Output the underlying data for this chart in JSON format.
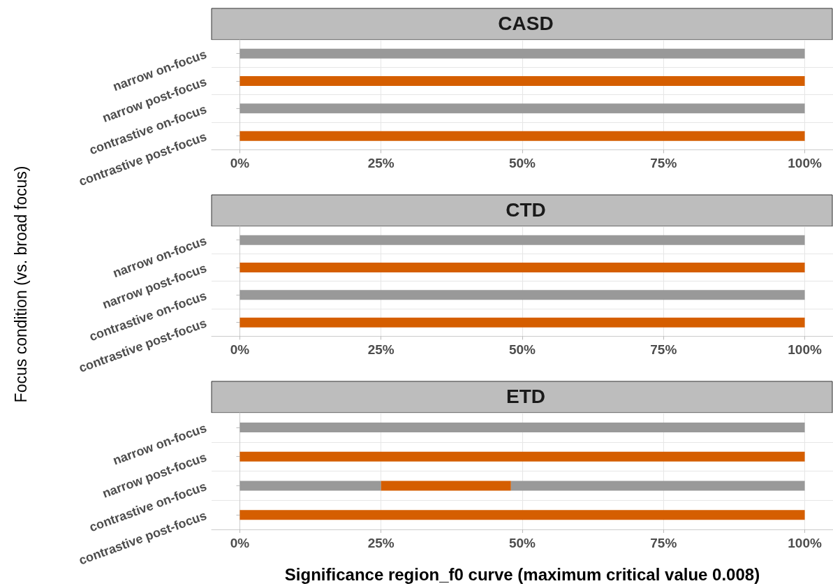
{
  "chart_data": [
    {
      "type": "bar",
      "title": "CASD",
      "orientation": "horizontal",
      "stacked": true,
      "categories": [
        "narrow on-focus",
        "narrow post-focus",
        "contrastive on-focus",
        "contrastive post-focus"
      ],
      "series": [
        {
          "values": [
            100,
            100,
            100,
            100
          ],
          "colors": [
            "#999999",
            "#d55e00",
            "#999999",
            "#d55e00"
          ]
        }
      ],
      "xlim": [
        -5,
        105
      ],
      "xticks": [
        {
          "value": 0,
          "label": "0%"
        },
        {
          "value": 25,
          "label": "25%"
        },
        {
          "value": 50,
          "label": "50%"
        },
        {
          "value": 75,
          "label": "75%"
        },
        {
          "value": 100,
          "label": "100%"
        }
      ],
      "grid": true
    },
    {
      "type": "bar",
      "title": "CTD",
      "ylabel": "Focus condition (vs. broad focus)",
      "orientation": "horizontal",
      "stacked": true,
      "categories": [
        "narrow on-focus",
        "narrow post-focus",
        "contrastive on-focus",
        "contrastive post-focus"
      ],
      "series": [
        {
          "values": [
            100,
            100,
            100,
            100
          ],
          "colors": [
            "#999999",
            "#d55e00",
            "#999999",
            "#d55e00"
          ]
        }
      ],
      "xlim": [
        -5,
        105
      ],
      "xticks": [
        {
          "value": 0,
          "label": "0%"
        },
        {
          "value": 25,
          "label": "25%"
        },
        {
          "value": 50,
          "label": "50%"
        },
        {
          "value": 75,
          "label": "75%"
        },
        {
          "value": 100,
          "label": "100%"
        }
      ],
      "grid": true
    },
    {
      "type": "bar",
      "title": "ETD",
      "xlabel": "Significance region_f0 curve (maximum critical value 0.008)",
      "orientation": "horizontal",
      "stacked": true,
      "categories": [
        "narrow on-focus",
        "narrow post-focus",
        "contrastive on-focus",
        "contrastive post-focus"
      ],
      "series": [
        {
          "values": [
            100,
            100,
            25,
            100
          ],
          "colors": [
            "#999999",
            "#d55e00",
            "#999999",
            "#d55e00"
          ]
        },
        {
          "values": [
            null,
            null,
            23,
            null
          ],
          "colors": [
            null,
            null,
            "#d55e00",
            null
          ]
        },
        {
          "values": [
            null,
            null,
            52,
            null
          ],
          "colors": [
            null,
            null,
            "#999999",
            null
          ]
        }
      ],
      "xlim": [
        -5,
        105
      ],
      "xticks": [
        {
          "value": 0,
          "label": "0%"
        },
        {
          "value": 25,
          "label": "25%"
        },
        {
          "value": 50,
          "label": "50%"
        },
        {
          "value": 75,
          "label": "75%"
        },
        {
          "value": 100,
          "label": "100%"
        }
      ],
      "grid": true
    }
  ]
}
